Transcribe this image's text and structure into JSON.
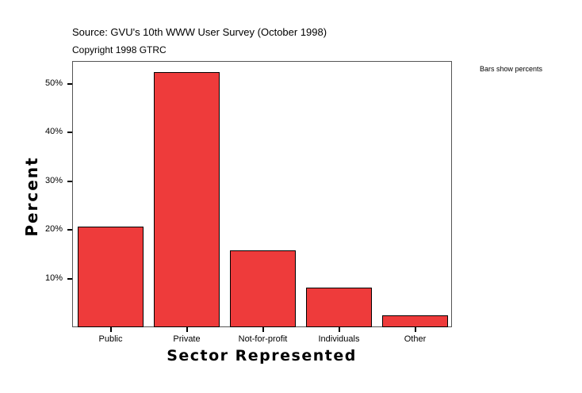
{
  "header": {
    "source": "Source: GVU's 10th WWW User Survey (October 1998)",
    "copyright": "Copyright 1998 GTRC"
  },
  "note": "Bars show percents",
  "chart_data": {
    "type": "bar",
    "title": "",
    "xlabel": "Sector Represented",
    "ylabel": "Percent",
    "categories": [
      "Public",
      "Private",
      "Not-for-profit",
      "Individuals",
      "Other"
    ],
    "values": [
      20.6,
      52.4,
      15.8,
      8.2,
      2.4
    ],
    "unit": "%",
    "ylim": [
      0,
      54.6
    ],
    "yticks": [
      "10%",
      "20%",
      "30%",
      "40%",
      "50%"
    ],
    "grid": false,
    "legend": "none",
    "bar_color": "#ee3b3b"
  }
}
